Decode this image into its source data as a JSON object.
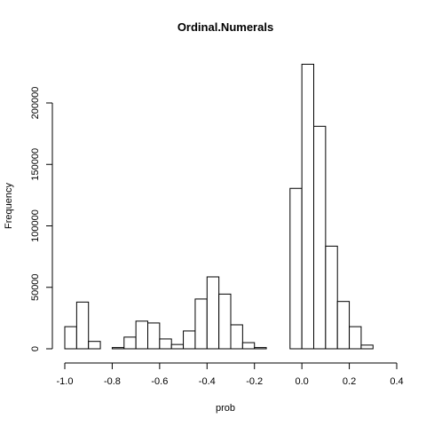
{
  "chart_data": {
    "type": "bar",
    "title": "Ordinal.Numerals",
    "xlabel": "prob",
    "ylabel": "Frequency",
    "xlim": [
      -1.0,
      0.4
    ],
    "ylim": [
      0,
      200000
    ],
    "x_ticks": [
      -1.0,
      -0.8,
      -0.6,
      -0.4,
      -0.2,
      0.0,
      0.2,
      0.4
    ],
    "x_tick_labels": [
      "-1.0",
      "-0.8",
      "-0.6",
      "-0.4",
      "-0.2",
      "0.0",
      "0.2",
      "0.4"
    ],
    "y_ticks": [
      0,
      50000,
      100000,
      150000,
      200000
    ],
    "y_tick_labels": [
      "0",
      "50000",
      "100000",
      "150000",
      "200000"
    ],
    "bin_width": 0.05,
    "bin_starts": [
      -1.0,
      -0.95,
      -0.9,
      -0.85,
      -0.8,
      -0.75,
      -0.7,
      -0.65,
      -0.6,
      -0.55,
      -0.5,
      -0.45,
      -0.4,
      -0.35,
      -0.3,
      -0.25,
      -0.2,
      -0.15,
      -0.1,
      -0.05,
      0.0,
      0.05,
      0.1,
      0.15,
      0.2,
      0.25,
      0.3
    ],
    "values": [
      18000,
      38000,
      6000,
      0,
      1000,
      9500,
      22500,
      21000,
      8000,
      3500,
      14500,
      40500,
      58500,
      44500,
      19500,
      5000,
      1000,
      0,
      0,
      130500,
      231500,
      181000,
      83500,
      38500,
      18000,
      3000,
      0
    ]
  }
}
